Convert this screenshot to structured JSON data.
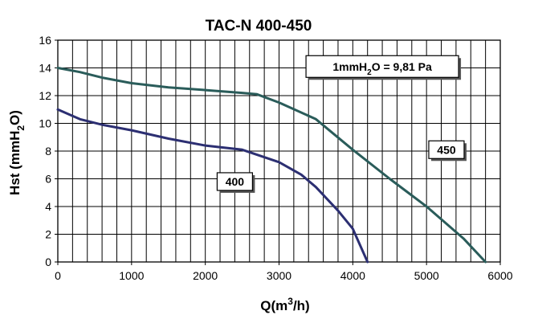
{
  "chart_data": {
    "type": "line",
    "title": "TAC-N   400-450",
    "xlabel": {
      "main": "Q(m",
      "sup": "3",
      "tail": "/h)"
    },
    "ylabel": {
      "main": "Hst (mmH",
      "sub": "2",
      "tail": "O)"
    },
    "xlim": [
      0,
      6000
    ],
    "ylim": [
      0,
      16
    ],
    "xticks": [
      0,
      1000,
      2000,
      3000,
      4000,
      5000,
      6000
    ],
    "yticks": [
      0,
      2,
      4,
      6,
      8,
      10,
      12,
      14,
      16
    ],
    "x_minor_step": 200,
    "y_minor_step": 2,
    "grid": true,
    "series": [
      {
        "name": "400",
        "color": "#2c2f72",
        "points": [
          [
            0,
            11.0
          ],
          [
            300,
            10.3
          ],
          [
            600,
            9.9
          ],
          [
            1000,
            9.5
          ],
          [
            1500,
            8.9
          ],
          [
            2000,
            8.4
          ],
          [
            2500,
            8.1
          ],
          [
            3000,
            7.2
          ],
          [
            3300,
            6.3
          ],
          [
            3500,
            5.4
          ],
          [
            3800,
            3.7
          ],
          [
            4000,
            2.4
          ],
          [
            4200,
            0.0
          ]
        ]
      },
      {
        "name": "450",
        "color": "#2a5c5a",
        "points": [
          [
            0,
            14.0
          ],
          [
            300,
            13.7
          ],
          [
            600,
            13.3
          ],
          [
            1000,
            12.9
          ],
          [
            1500,
            12.6
          ],
          [
            2000,
            12.4
          ],
          [
            2500,
            12.2
          ],
          [
            2700,
            12.1
          ],
          [
            3000,
            11.5
          ],
          [
            3500,
            10.3
          ],
          [
            4000,
            8.1
          ],
          [
            4500,
            6.0
          ],
          [
            5000,
            4.0
          ],
          [
            5500,
            1.7
          ],
          [
            5800,
            0.0
          ]
        ]
      }
    ],
    "annotations": [
      {
        "text_main": "1mmH",
        "text_sub": "2",
        "text_tail": "O = 9,81 Pa",
        "x": 4400,
        "y": 14.1
      },
      {
        "text": "450",
        "x": 5270,
        "y": 8.1
      },
      {
        "text": "400",
        "x": 2400,
        "y": 5.8
      }
    ]
  }
}
